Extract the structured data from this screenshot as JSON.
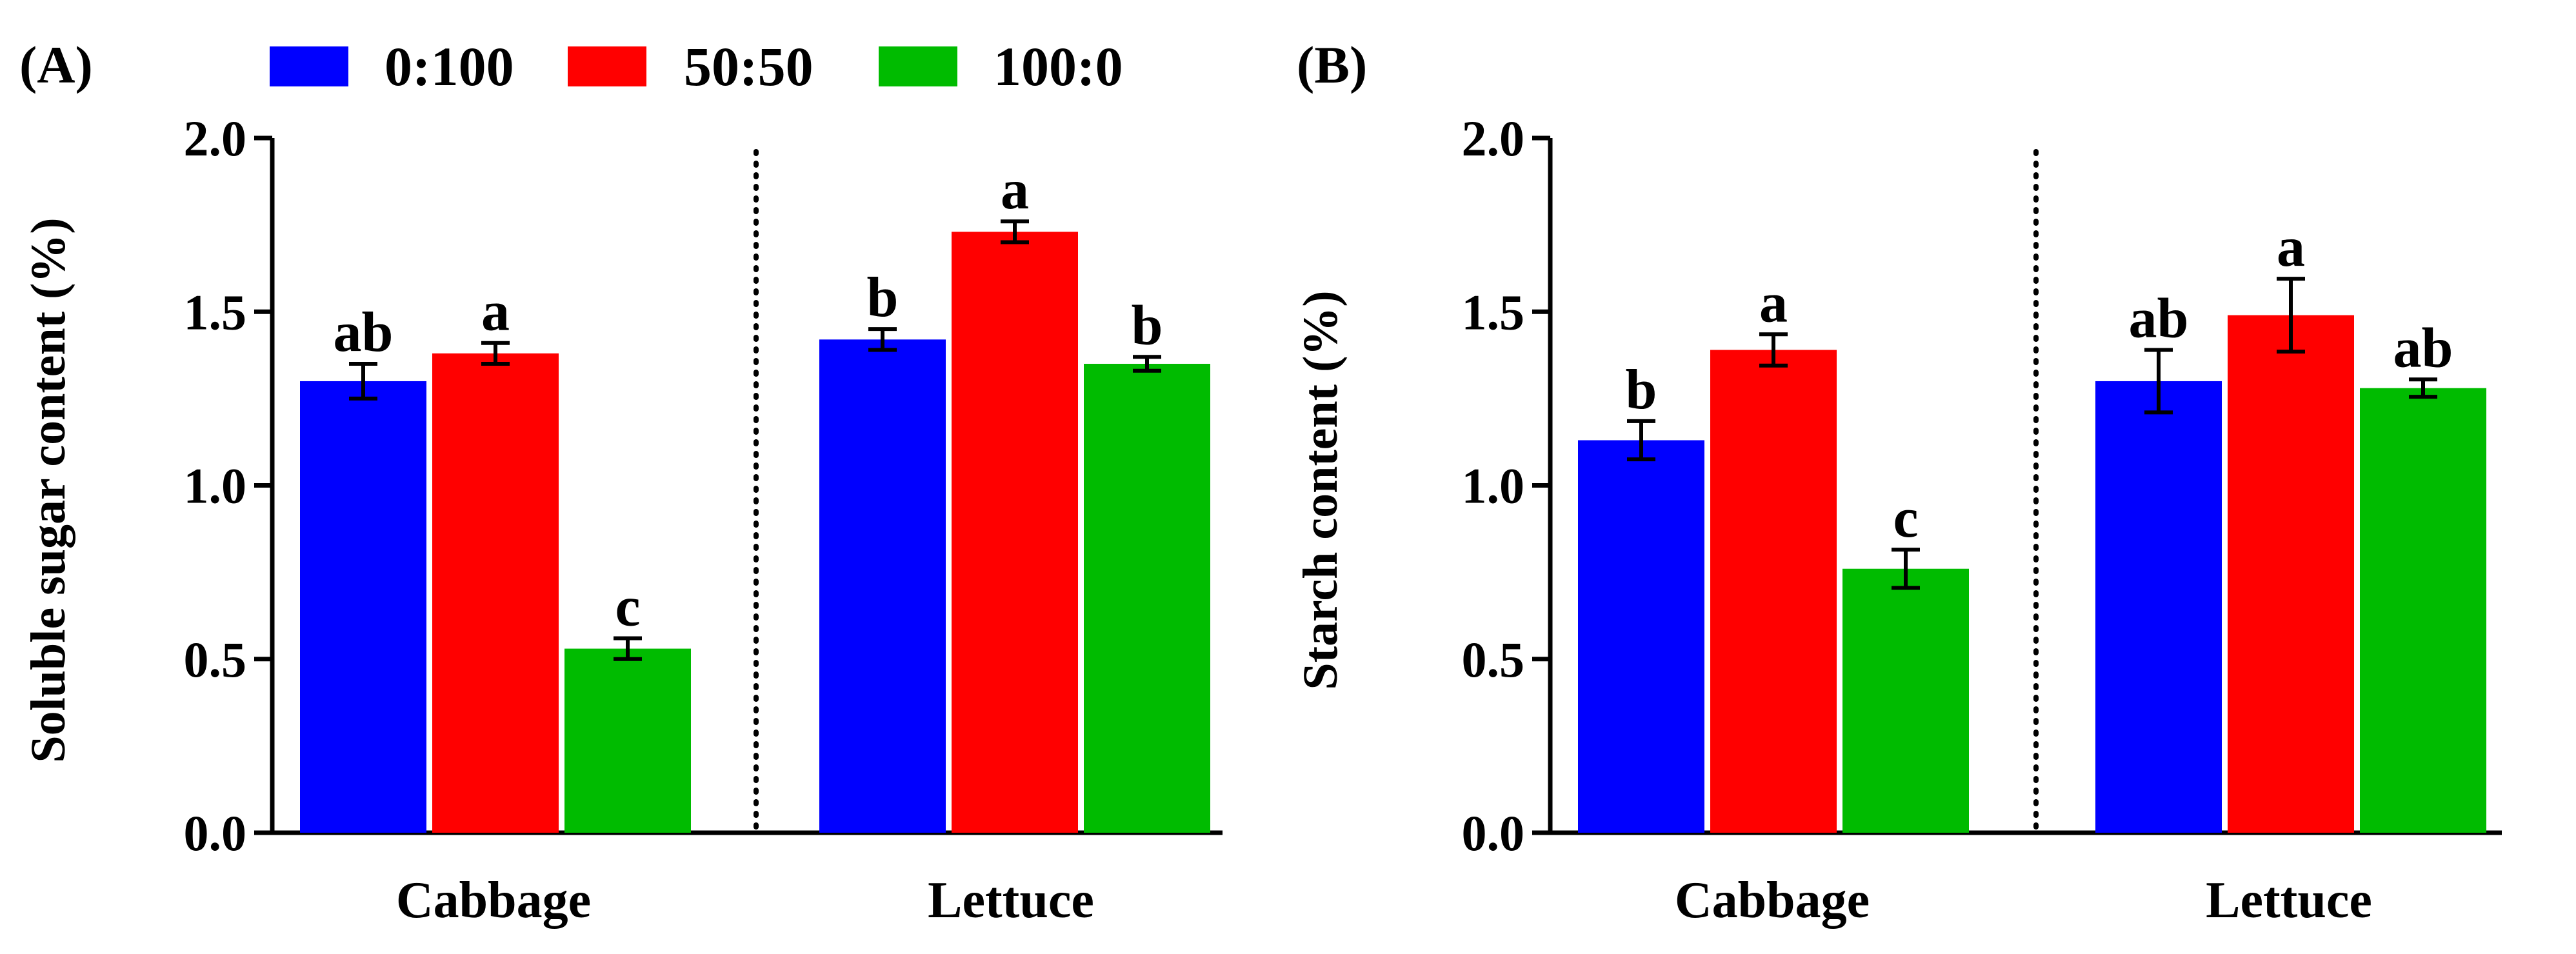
{
  "legend": [
    {
      "name": "0:100",
      "color": "#0000FF"
    },
    {
      "name": "50:50",
      "color": "#FF0000"
    },
    {
      "name": "100:0",
      "color": "#00BB00"
    }
  ],
  "chart_data": [
    {
      "type": "bar",
      "panel_label": "(A)",
      "title": "",
      "xlabel": "",
      "ylabel": "Soluble sugar content (%)",
      "ylim": [
        0,
        2.0
      ],
      "yticks": [
        "0.0",
        "0.5",
        "1.0",
        "1.5",
        "2.0"
      ],
      "categories": [
        "Cabbage",
        "Lettuce"
      ],
      "series": [
        {
          "name": "0:100",
          "values": [
            1.3,
            1.42
          ],
          "errors": [
            0.05,
            0.03
          ],
          "letters": [
            "ab",
            "b"
          ]
        },
        {
          "name": "50:50",
          "values": [
            1.38,
            1.73
          ],
          "errors": [
            0.03,
            0.03
          ],
          "letters": [
            "a",
            "a"
          ]
        },
        {
          "name": "100:0",
          "values": [
            0.53,
            1.35
          ],
          "errors": [
            0.03,
            0.02
          ],
          "letters": [
            "c",
            "b"
          ]
        }
      ]
    },
    {
      "type": "bar",
      "panel_label": "(B)",
      "title": "",
      "xlabel": "",
      "ylabel": "Starch content (%)",
      "ylim": [
        0,
        2.0
      ],
      "yticks": [
        "0.0",
        "0.5",
        "1.0",
        "1.5",
        "2.0"
      ],
      "categories": [
        "Cabbage",
        "Lettuce"
      ],
      "series": [
        {
          "name": "0:100",
          "values": [
            1.13,
            1.3
          ],
          "errors": [
            0.055,
            0.09
          ],
          "letters": [
            "b",
            "ab"
          ]
        },
        {
          "name": "50:50",
          "values": [
            1.39,
            1.49
          ],
          "errors": [
            0.045,
            0.105
          ],
          "letters": [
            "a",
            "a"
          ]
        },
        {
          "name": "100:0",
          "values": [
            0.76,
            1.28
          ],
          "errors": [
            0.055,
            0.025
          ],
          "letters": [
            "c",
            "ab"
          ]
        }
      ]
    }
  ]
}
